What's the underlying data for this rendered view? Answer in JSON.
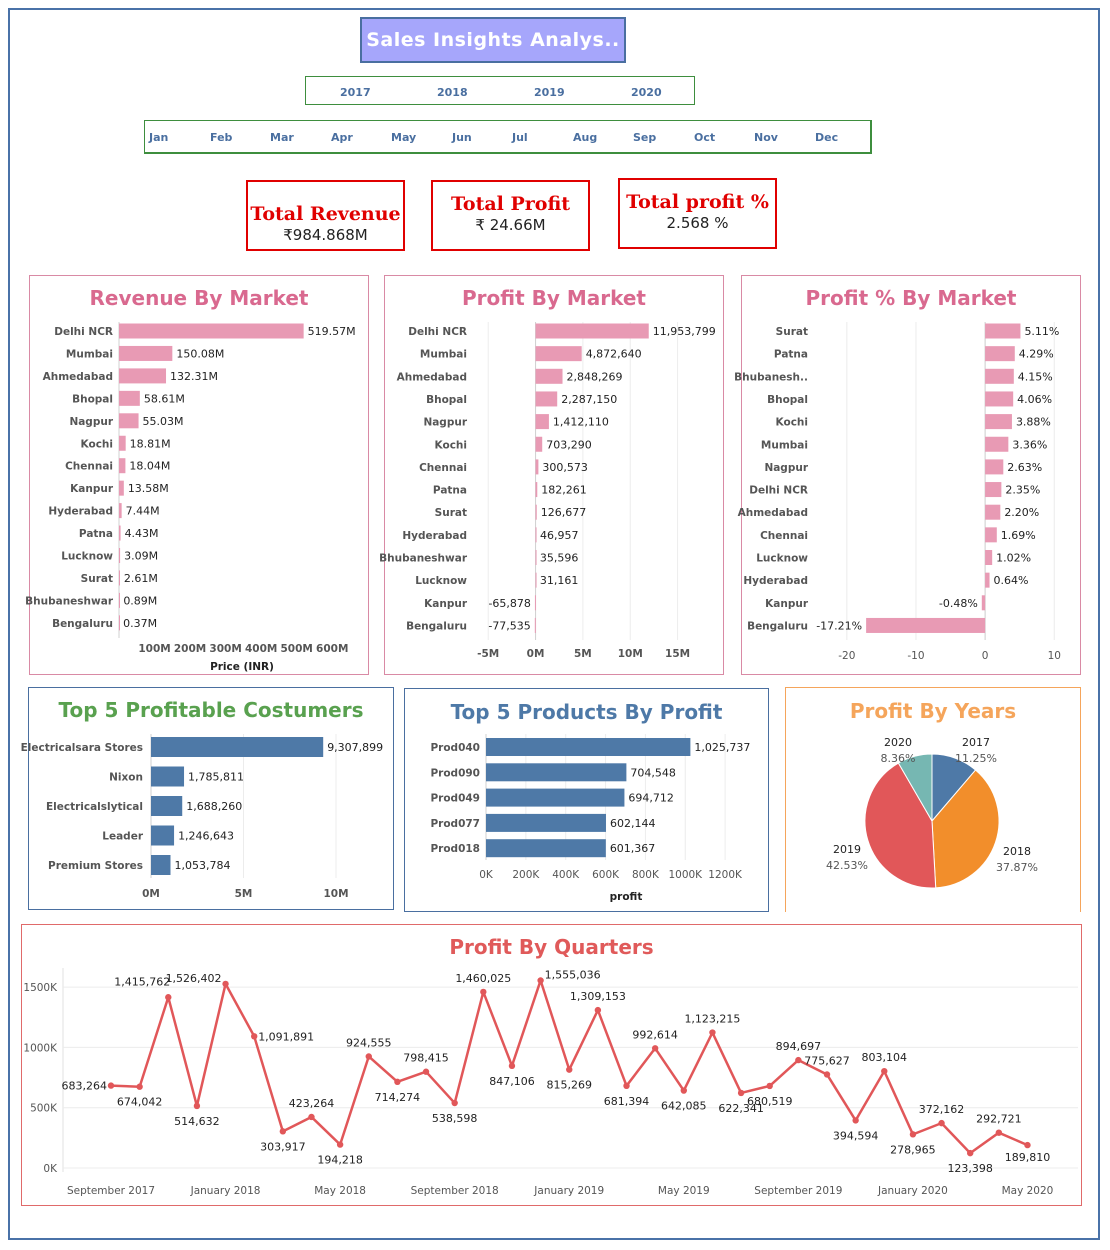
{
  "dashboard": {
    "title": "Sales Insights Analys..",
    "years": [
      "2017",
      "2018",
      "2019",
      "2020"
    ],
    "months": [
      "Jan",
      "Feb",
      "Mar",
      "Apr",
      "May",
      "Jun",
      "Jul",
      "Aug",
      "Sep",
      "Oct",
      "Nov",
      "Dec"
    ]
  },
  "kpis": {
    "revenue": {
      "title": "Total Revenue",
      "value": "₹984.868M"
    },
    "profit": {
      "title": "Total Profit",
      "value": "₹ 24.66M"
    },
    "profit_pct": {
      "title": "Total profit %",
      "value": "2.568 %"
    }
  },
  "colors": {
    "pink": "#e89ab4",
    "pink_title": "#d9698f",
    "blue": "#4e79a7",
    "green_title": "#59a14f",
    "orange": "#f28e2b",
    "red": "#e15759",
    "teal": "#76b7b2",
    "orange_title": "#f5a55b",
    "red_title": "#e05a5a"
  },
  "chart_data": [
    {
      "id": "revenue_by_market",
      "type": "bar",
      "orientation": "horizontal",
      "title": "Revenue By Market",
      "xlabel": "Price (INR)",
      "categories": [
        "Delhi NCR",
        "Mumbai",
        "Ahmedabad",
        "Bhopal",
        "Nagpur",
        "Kochi",
        "Chennai",
        "Kanpur",
        "Hyderabad",
        "Patna",
        "Lucknow",
        "Surat",
        "Bhubaneshwar",
        "Bengaluru"
      ],
      "values": [
        519.57,
        150.08,
        132.31,
        58.61,
        55.03,
        18.81,
        18.04,
        13.58,
        7.44,
        4.43,
        3.09,
        2.61,
        0.89,
        0.37
      ],
      "labels": [
        "519.57M",
        "150.08M",
        "132.31M",
        "58.61M",
        "55.03M",
        "18.81M",
        "18.04M",
        "13.58M",
        "7.44M",
        "4.43M",
        "3.09M",
        "2.61M",
        "0.89M",
        "0.37M"
      ],
      "xlim": [
        0,
        650
      ],
      "ticks": [
        100,
        200,
        300,
        400,
        500,
        600
      ],
      "tick_labels": [
        "100M",
        "200M",
        "300M",
        "400M",
        "500M",
        "600M"
      ]
    },
    {
      "id": "profit_by_market",
      "type": "bar",
      "orientation": "horizontal",
      "title": "Profit By Market",
      "categories": [
        "Delhi NCR",
        "Mumbai",
        "Ahmedabad",
        "Bhopal",
        "Nagpur",
        "Kochi",
        "Chennai",
        "Patna",
        "Surat",
        "Hyderabad",
        "Bhubaneshwar",
        "Lucknow",
        "Kanpur",
        "Bengaluru"
      ],
      "values": [
        11953799,
        4872640,
        2848269,
        2287150,
        1412110,
        703290,
        300573,
        182261,
        126677,
        46957,
        35596,
        31161,
        -65878,
        -77535
      ],
      "labels": [
        "11,953,799",
        "4,872,640",
        "2,848,269",
        "2,287,150",
        "1,412,110",
        "703,290",
        "300,573",
        "182,261",
        "126,677",
        "46,957",
        "35,596",
        "31,161",
        "-65,878",
        "-77,535"
      ],
      "xlim": [
        -6500000,
        18000000
      ],
      "ticks": [
        -5000000,
        0,
        5000000,
        10000000,
        15000000
      ],
      "tick_labels": [
        "-5M",
        "0M",
        "5M",
        "10M",
        "15M"
      ]
    },
    {
      "id": "profit_pct_by_market",
      "type": "bar",
      "orientation": "horizontal",
      "title": "Profit  % By Market",
      "categories": [
        "Surat",
        "Patna",
        "Bhubanesh..",
        "Bhopal",
        "Kochi",
        "Mumbai",
        "Nagpur",
        "Delhi NCR",
        "Ahmedabad",
        "Chennai",
        "Lucknow",
        "Hyderabad",
        "Kanpur",
        "Bengaluru"
      ],
      "values": [
        5.11,
        4.29,
        4.15,
        4.06,
        3.88,
        3.36,
        2.63,
        2.35,
        2.2,
        1.69,
        1.02,
        0.64,
        -0.48,
        -17.21
      ],
      "labels": [
        "5.11%",
        "4.29%",
        "4.15%",
        "4.06%",
        "3.88%",
        "3.36%",
        "2.63%",
        "2.35%",
        "2.20%",
        "1.69%",
        "1.02%",
        "0.64%",
        "-0.48%",
        "-17.21%"
      ],
      "xlim": [
        -22,
        13
      ],
      "ticks": [
        -20,
        -10,
        0,
        10
      ],
      "tick_labels": [
        "-20",
        "-10",
        "0",
        "10"
      ]
    },
    {
      "id": "top5_customers",
      "type": "bar",
      "orientation": "horizontal",
      "title": "Top 5 Profitable Costumers",
      "categories": [
        "Electricalsara Stores",
        "Nixon",
        "Electricalslytical",
        "Leader",
        "Premium Stores"
      ],
      "values": [
        9307899,
        1785811,
        1688260,
        1246643,
        1053784
      ],
      "labels": [
        "9,307,899",
        "1,785,811",
        "1,688,260",
        "1,246,643",
        "1,053,784"
      ],
      "xlim": [
        0,
        12000000
      ],
      "ticks": [
        0,
        5000000,
        10000000
      ],
      "tick_labels": [
        "0M",
        "5M",
        "10M"
      ]
    },
    {
      "id": "top5_products",
      "type": "bar",
      "orientation": "horizontal",
      "title": "Top 5 Products By Profit",
      "xlabel": "profit",
      "categories": [
        "Prod040",
        "Prod090",
        "Prod049",
        "Prod077",
        "Prod018"
      ],
      "values": [
        1025737,
        704548,
        694712,
        602144,
        601367
      ],
      "labels": [
        "1,025,737",
        "704,548",
        "694,712",
        "602,144",
        "601,367"
      ],
      "xlim": [
        0,
        1350000
      ],
      "ticks": [
        0,
        200000,
        400000,
        600000,
        800000,
        1000000,
        1200000
      ],
      "tick_labels": [
        "0K",
        "200K",
        "400K",
        "600K",
        "800K",
        "1000K",
        "1200K"
      ]
    },
    {
      "id": "profit_by_years",
      "type": "pie",
      "title": "Profit By Years",
      "categories": [
        "2017",
        "2018",
        "2019",
        "2020"
      ],
      "values": [
        11.25,
        37.87,
        42.53,
        8.36
      ],
      "labels": [
        "11.25%",
        "37.87%",
        "42.53%",
        "8.36%"
      ],
      "colors": [
        "#4e79a7",
        "#f28e2b",
        "#e15759",
        "#76b7b2"
      ]
    },
    {
      "id": "profit_by_quarters",
      "type": "line",
      "title": "Profit By Quarters",
      "values": [
        683264,
        674042,
        1415762,
        514632,
        1526402,
        1091891,
        303917,
        423264,
        194218,
        924555,
        714274,
        798415,
        538598,
        1460025,
        847106,
        1555036,
        815269,
        1309153,
        681394,
        992614,
        642085,
        1123215,
        622341,
        680519,
        894697,
        775627,
        394594,
        803104,
        278965,
        372162,
        123398,
        292721,
        189810
      ],
      "labels": [
        "683,264",
        "674,042",
        "1,415,762",
        "514,632",
        "1,526,402",
        "1,091,891",
        "303,917",
        "423,264",
        "194,218",
        "924,555",
        "714,274",
        "798,415",
        "538,598",
        "1,460,025",
        "847,106",
        "1,555,036",
        "815,269",
        "1,309,153",
        "681,394",
        "992,614",
        "642,085",
        "1,123,215",
        "622,341",
        "680,519",
        "894,697",
        "775,627",
        "394,594",
        "803,104",
        "278,965",
        "372,162",
        "123,398",
        "292,721",
        "189,810"
      ],
      "ylim": [
        0,
        1650000
      ],
      "y_ticks": [
        0,
        500000,
        1000000,
        1500000
      ],
      "y_tick_labels": [
        "0K",
        "500K",
        "1000K",
        "1500K"
      ],
      "x_tick_labels": [
        "September 2017",
        "January 2018",
        "May 2018",
        "September 2018",
        "January 2019",
        "May 2019",
        "September 2019",
        "January 2020",
        "May 2020"
      ]
    }
  ]
}
